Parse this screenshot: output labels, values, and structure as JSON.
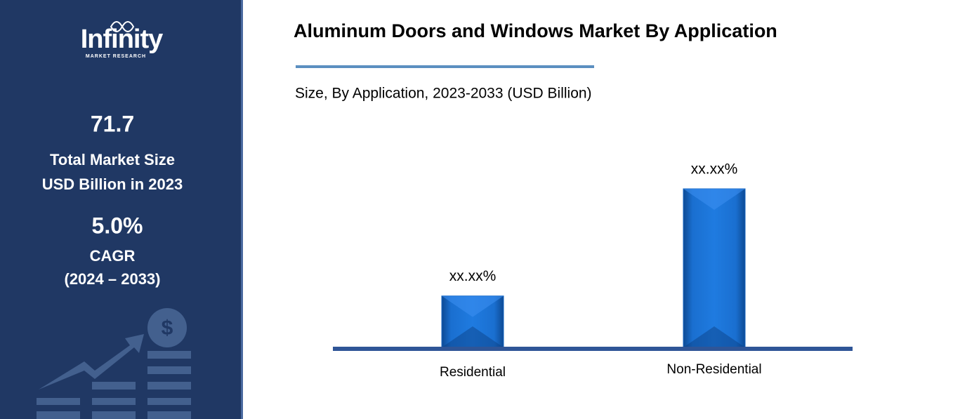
{
  "sidebar": {
    "logo": {
      "name": "Infinity",
      "tagline": "MARKET RESEARCH"
    },
    "stats": [
      {
        "value": "71.7",
        "lines": [
          "Total Market Size",
          "USD Billion in 2023"
        ]
      },
      {
        "value": "5.0%",
        "lines": [
          "CAGR",
          "(2024 – 2033)"
        ]
      }
    ]
  },
  "chart_data": {
    "type": "bar",
    "title": "Aluminum Doors and Windows Market By Application",
    "subtitle": "Size, By Application, 2023-2033 (USD Billion)",
    "categories": [
      "Residential",
      "Non-Residential"
    ],
    "values": [
      24.5,
      75.5
    ],
    "value_labels": [
      "xx.xx%",
      "xx.xx%"
    ],
    "color": "#1565c0"
  }
}
